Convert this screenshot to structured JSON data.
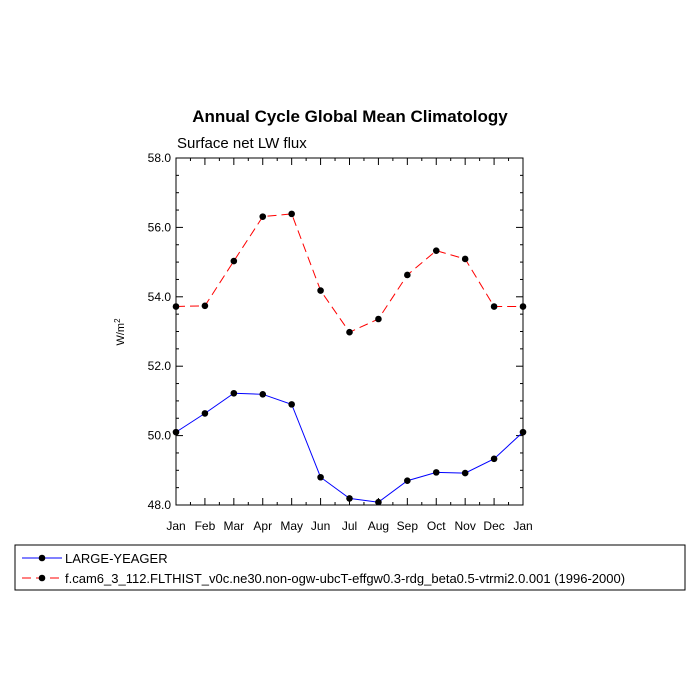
{
  "chart_data": {
    "type": "line",
    "title": "Annual Cycle Global Mean Climatology",
    "subtitle": "Surface net LW flux",
    "ylabel": "W/m",
    "ylabel_sup": "2",
    "xlabel": "",
    "categories": [
      "Jan",
      "Feb",
      "Mar",
      "Apr",
      "May",
      "Jun",
      "Jul",
      "Aug",
      "Sep",
      "Oct",
      "Nov",
      "Dec",
      "Jan"
    ],
    "ylim": [
      48.0,
      58.0
    ],
    "yticks": [
      "48.0",
      "50.0",
      "52.0",
      "54.0",
      "56.0",
      "58.0"
    ],
    "series": [
      {
        "name": "LARGE-YEAGER",
        "color": "#0000ff",
        "dash": "solid",
        "values": [
          50.1,
          50.64,
          51.22,
          51.19,
          50.9,
          48.8,
          48.19,
          48.08,
          48.7,
          48.94,
          48.92,
          49.33,
          50.1
        ]
      },
      {
        "name": "f.cam6_3_112.FLTHIST_v0c.ne30.non-ogw-ubcT-effgw0.3-rdg_beta0.5-vtrmi2.0.001 (1996-2000)",
        "color": "#ff0000",
        "dash": "dashed",
        "values": [
          53.72,
          53.74,
          55.03,
          56.31,
          56.39,
          54.18,
          52.98,
          53.36,
          54.63,
          55.33,
          55.09,
          53.72,
          53.72
        ]
      }
    ]
  }
}
